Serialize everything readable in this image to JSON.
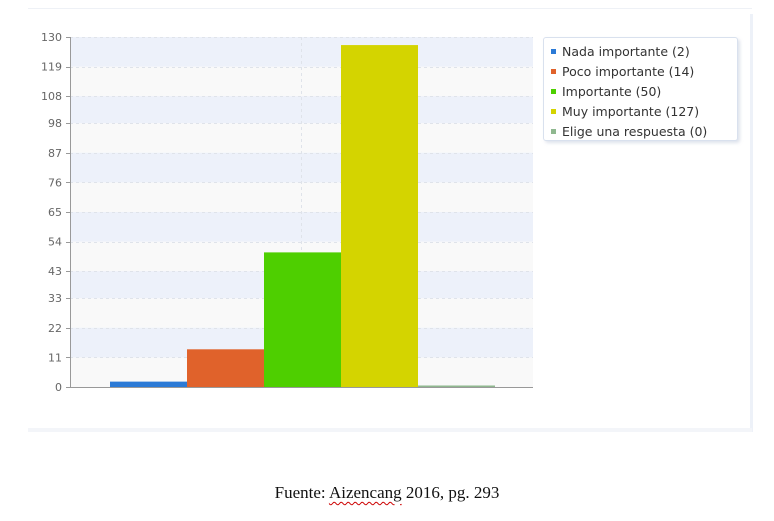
{
  "chart_data": {
    "type": "bar",
    "categories": [
      "Nada importante",
      "Poco importante",
      "Importante",
      "Muy importante",
      "Elige una respuesta"
    ],
    "values": [
      2,
      14,
      50,
      127,
      0
    ],
    "colors": [
      "#2b7ad6",
      "#e0622b",
      "#4ecf00",
      "#d4d400",
      "#8fb88f"
    ],
    "y_ticks": [
      "0",
      "11",
      "22",
      "33",
      "43",
      "54",
      "65",
      "76",
      "87",
      "98",
      "108",
      "119",
      "130"
    ],
    "ylim": [
      0,
      130
    ],
    "grid": "alternating horizontal bands with dashed gridlines",
    "legend_position": "top-right",
    "legend": [
      {
        "label": "Nada importante (2)",
        "color": "#2b7ad6"
      },
      {
        "label": "Poco importante (14)",
        "color": "#e0622b"
      },
      {
        "label": "Importante (50)",
        "color": "#4ecf00"
      },
      {
        "label": "Muy importante (127)",
        "color": "#d4d400"
      },
      {
        "label": "Elige una respuesta (0)",
        "color": "#8fb88f"
      }
    ]
  },
  "caption": {
    "prefix": "Fuente: ",
    "author": "Aizencang",
    "suffix": " 2016, pg. 293"
  }
}
